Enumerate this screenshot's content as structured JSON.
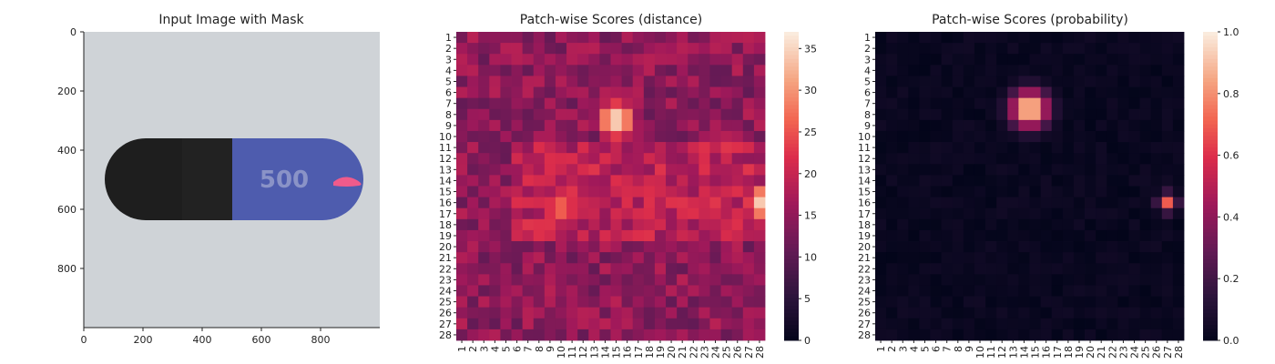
{
  "chart_data": [
    {
      "type": "image",
      "title": "Input Image with Mask",
      "xticks": [
        0,
        200,
        400,
        600,
        800
      ],
      "yticks": [
        0,
        200,
        400,
        600,
        800
      ],
      "extent": [
        0,
        1000
      ],
      "description_colors": {
        "background": "#cfd3d7",
        "capsule_dark": "#1f1f1f",
        "capsule_blue": "#4e5cae",
        "mask": "#ef5b8b"
      },
      "capsule_text": "500"
    },
    {
      "type": "heatmap",
      "title": "Patch-wise Scores (distance)",
      "grid_size": 28,
      "tick_labels": [
        "1",
        "2",
        "3",
        "4",
        "5",
        "6",
        "7",
        "8",
        "9",
        "10",
        "11",
        "12",
        "13",
        "14",
        "15",
        "16",
        "17",
        "18",
        "19",
        "20",
        "21",
        "22",
        "23",
        "24",
        "25",
        "26",
        "27",
        "28"
      ],
      "colorbar_ticks": [
        0,
        5,
        10,
        15,
        20,
        25,
        30,
        35
      ],
      "vmin": 0,
      "vmax": 37,
      "colormap": "rocket",
      "hotspots": [
        {
          "row": 7.5,
          "col": 14.0,
          "peak": 36,
          "sigma": 1.6
        },
        {
          "row": 15.0,
          "col": 27.5,
          "peak": 36,
          "sigma": 1.6
        },
        {
          "row": 15.5,
          "col": 9.0,
          "peak": 27,
          "sigma": 1.8
        }
      ]
    },
    {
      "type": "heatmap",
      "title": "Patch-wise Scores (probability)",
      "grid_size": 28,
      "tick_labels": [
        "1",
        "2",
        "3",
        "4",
        "5",
        "6",
        "7",
        "8",
        "9",
        "10",
        "11",
        "12",
        "13",
        "14",
        "15",
        "16",
        "17",
        "18",
        "19",
        "20",
        "21",
        "22",
        "23",
        "24",
        "25",
        "26",
        "27",
        "28"
      ],
      "colorbar_ticks": [
        0.0,
        0.2,
        0.4,
        0.6,
        0.8,
        1.0
      ],
      "colorbar_tick_labels": [
        "0.0",
        "0.2",
        "0.4",
        "0.6",
        "0.8",
        "1.0"
      ],
      "vmin": 0,
      "vmax": 1,
      "colormap": "rocket",
      "hotspots": [
        {
          "row": 6.5,
          "col": 13.5,
          "peak": 1.0,
          "sigma": 1.2
        },
        {
          "row": 15.0,
          "col": 26.0,
          "peak": 0.7,
          "sigma": 0.6
        }
      ]
    }
  ]
}
